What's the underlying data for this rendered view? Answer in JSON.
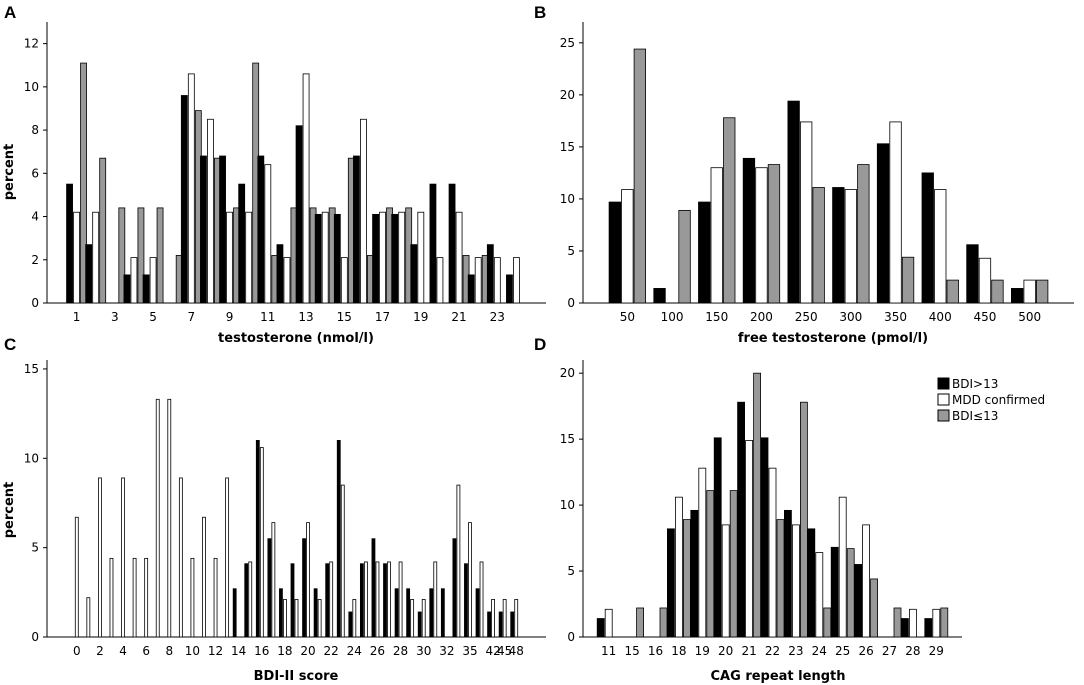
{
  "colors": {
    "black": "#000000",
    "white": "#ffffff",
    "gray": "#999999"
  },
  "legend": {
    "items": [
      {
        "label": "BDI>13",
        "color": "#000000"
      },
      {
        "label": "MDD confirmed",
        "color": "#ffffff"
      },
      {
        "label": "BDI≤13",
        "color": "#999999"
      }
    ]
  },
  "chart_data": [
    {
      "panel": "A",
      "type": "bar",
      "xlabel": "testosterone (nmol/l)",
      "ylabel": "percent",
      "ylim": [
        0,
        13
      ],
      "yticks": [
        0,
        2,
        4,
        6,
        8,
        10,
        12
      ],
      "categories": [
        1,
        2,
        3,
        4,
        5,
        6,
        7,
        8,
        9,
        10,
        11,
        12,
        13,
        14,
        15,
        16,
        17,
        18,
        19,
        20,
        21,
        22,
        23,
        24
      ],
      "tick_labels": [
        "1",
        "",
        "3",
        "",
        "5",
        "",
        "7",
        "",
        "9",
        "",
        "11",
        "",
        "13",
        "",
        "15",
        "",
        "17",
        "",
        "19",
        "",
        "21",
        "",
        "23",
        ""
      ],
      "series": [
        {
          "name": "BDI>13",
          "values": [
            5.5,
            2.7,
            0,
            1.3,
            1.3,
            0,
            9.6,
            6.8,
            6.8,
            5.5,
            6.8,
            2.7,
            8.2,
            4.1,
            4.1,
            6.8,
            4.1,
            4.1,
            2.7,
            5.5,
            5.5,
            1.3,
            2.7,
            1.3
          ]
        },
        {
          "name": "MDD confirmed",
          "values": [
            4.2,
            4.2,
            0,
            2.1,
            2.1,
            0,
            10.6,
            8.5,
            4.2,
            4.2,
            6.4,
            2.1,
            10.6,
            4.2,
            2.1,
            8.5,
            4.2,
            4.2,
            4.2,
            2.1,
            4.2,
            2.1,
            2.1,
            2.1
          ]
        },
        {
          "name": "BDI≤13",
          "values": [
            11.1,
            6.7,
            4.4,
            4.4,
            4.4,
            2.2,
            8.9,
            6.7,
            4.4,
            11.1,
            2.2,
            4.4,
            4.4,
            4.4,
            6.7,
            2.2,
            4.4,
            4.4,
            0,
            0,
            2.2,
            2.2,
            0,
            0
          ]
        }
      ]
    },
    {
      "panel": "B",
      "type": "bar",
      "xlabel": "free testosterone (pmol/l)",
      "ylabel": "",
      "ylim": [
        0,
        27
      ],
      "yticks": [
        0,
        5,
        10,
        15,
        20,
        25
      ],
      "categories": [
        "50",
        "100",
        "150",
        "200",
        "250",
        "300",
        "350",
        "400",
        "450",
        "500"
      ],
      "tick_labels": [
        "50",
        "100",
        "150",
        "200",
        "250",
        "300",
        "350",
        "400",
        "450",
        "500"
      ],
      "series": [
        {
          "name": "BDI>13",
          "values": [
            9.7,
            1.4,
            9.7,
            13.9,
            19.4,
            11.1,
            15.3,
            12.5,
            5.6,
            1.4
          ]
        },
        {
          "name": "MDD confirmed",
          "values": [
            10.9,
            0,
            13.0,
            13.0,
            17.4,
            10.9,
            17.4,
            10.9,
            4.3,
            2.2
          ]
        },
        {
          "name": "BDI≤13",
          "values": [
            24.4,
            8.9,
            17.8,
            13.3,
            11.1,
            13.3,
            4.4,
            2.2,
            2.2,
            2.2
          ]
        }
      ]
    },
    {
      "panel": "C",
      "type": "bar",
      "xlabel": "BDI-II score",
      "ylabel": "percent",
      "ylim": [
        0,
        15.5
      ],
      "yticks": [
        0,
        5,
        10,
        15
      ],
      "categories": [
        "0",
        "1",
        "2",
        "3",
        "4",
        "5",
        "6",
        "7",
        "8",
        "9",
        "10",
        "11",
        "12",
        "13",
        "14",
        "15",
        "16",
        "17",
        "18",
        "19",
        "20",
        "21",
        "22",
        "23",
        "24",
        "25",
        "26",
        "27",
        "28",
        "29",
        "30",
        "31",
        "32",
        "33",
        "35",
        "37",
        "42",
        "45",
        "48"
      ],
      "tick_labels": [
        "0",
        "",
        "2",
        "",
        "4",
        "",
        "6",
        "",
        "8",
        "",
        "10",
        "",
        "12",
        "",
        "14",
        "",
        "16",
        "",
        "18",
        "",
        "20",
        "",
        "22",
        "",
        "24",
        "",
        "26",
        "",
        "28",
        "",
        "30",
        "",
        "32",
        "",
        "35",
        "",
        "42",
        "45",
        "48"
      ],
      "series": [
        {
          "name": "BDI>13",
          "values": [
            0,
            0,
            0,
            0,
            0,
            0,
            0,
            0,
            0,
            0,
            0,
            0,
            0,
            0,
            2.7,
            4.1,
            11.0,
            5.5,
            2.7,
            4.1,
            5.5,
            2.7,
            4.1,
            11.0,
            1.4,
            4.1,
            5.5,
            4.1,
            2.7,
            2.7,
            1.4,
            2.7,
            2.7,
            5.5,
            4.1,
            2.7,
            1.4,
            1.4,
            1.4
          ]
        },
        {
          "name": "MDD confirmed",
          "values": [
            6.7,
            2.2,
            8.9,
            4.4,
            8.9,
            4.4,
            4.4,
            13.3,
            13.3,
            8.9,
            4.4,
            6.7,
            4.4,
            8.9,
            0,
            4.2,
            10.6,
            6.4,
            2.1,
            2.1,
            6.4,
            2.1,
            4.2,
            8.5,
            2.1,
            4.2,
            4.2,
            4.2,
            4.2,
            2.1,
            2.1,
            4.2,
            0,
            8.5,
            6.4,
            4.2,
            2.1,
            2.1,
            2.1
          ]
        },
        {
          "name": "BDI≤13",
          "values": [
            0,
            0,
            0,
            0,
            0,
            0,
            0,
            0,
            0,
            0,
            0,
            0,
            0,
            0,
            0,
            0,
            0,
            0,
            0,
            0,
            0,
            0,
            0,
            0,
            0,
            0,
            0,
            0,
            0,
            0,
            0,
            0,
            0,
            0,
            0,
            0,
            0,
            0,
            0
          ]
        }
      ]
    },
    {
      "panel": "D",
      "type": "bar",
      "xlabel": "CAG repeat length",
      "ylabel": "",
      "ylim": [
        0,
        21
      ],
      "yticks": [
        0,
        5,
        10,
        15,
        20
      ],
      "categories": [
        "11",
        "15",
        "16",
        "18",
        "19",
        "20",
        "21",
        "22",
        "23",
        "24",
        "25",
        "26",
        "27",
        "28",
        "29"
      ],
      "tick_labels": [
        "11",
        "15",
        "16",
        "18",
        "19",
        "20",
        "21",
        "22",
        "23",
        "24",
        "25",
        "26",
        "27",
        "28",
        "29"
      ],
      "series": [
        {
          "name": "BDI>13",
          "values": [
            1.4,
            0,
            0,
            8.2,
            9.6,
            15.1,
            17.8,
            15.1,
            9.6,
            8.2,
            6.8,
            5.5,
            0,
            1.4,
            1.4
          ]
        },
        {
          "name": "MDD confirmed",
          "values": [
            2.1,
            0,
            0,
            10.6,
            12.8,
            8.5,
            14.9,
            12.8,
            8.5,
            6.4,
            10.6,
            8.5,
            0,
            2.1,
            2.1
          ]
        },
        {
          "name": "BDI≤13",
          "values": [
            0,
            2.2,
            2.2,
            8.9,
            11.1,
            11.1,
            20.0,
            8.9,
            17.8,
            2.2,
            6.7,
            4.4,
            2.2,
            0,
            2.2
          ]
        }
      ]
    }
  ]
}
